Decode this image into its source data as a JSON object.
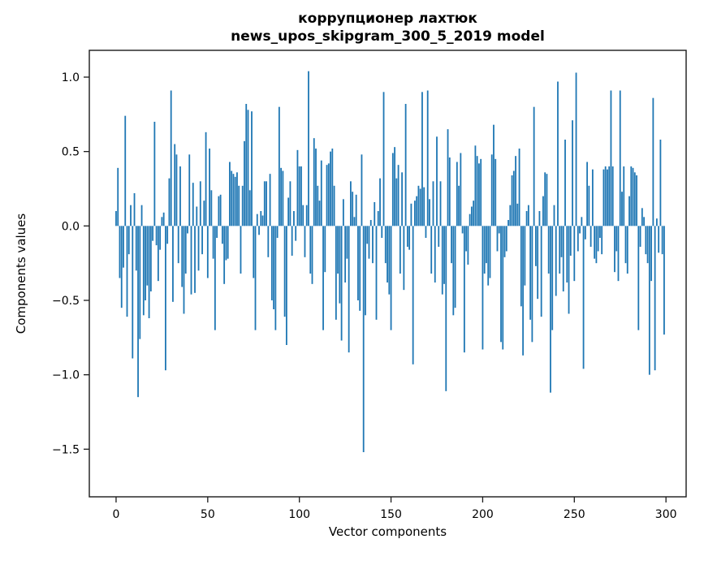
{
  "figure": {
    "background": "#ffffff",
    "text_color": "#000000",
    "spine_color": "#1a1a1a"
  },
  "chart_data": {
    "type": "bar",
    "title_line1": "коррупционер лахтюк",
    "title_line2": "news_upos_skipgram_300_5_2019 model",
    "xlabel": "Vector components",
    "ylabel": "Components values",
    "bar_color": "#1f77b4",
    "grid": false,
    "legend": null,
    "x_ticks": [
      0,
      50,
      100,
      150,
      200,
      250,
      300
    ],
    "x_tick_labels": [
      "0",
      "50",
      "100",
      "150",
      "200",
      "250",
      "300"
    ],
    "y_ticks": [
      1.0,
      0.5,
      0.0,
      -0.5,
      -1.0,
      -1.5
    ],
    "y_tick_labels": [
      "1.0",
      "0.5",
      "0.0",
      "−0.5",
      "−1.0",
      "−1.5"
    ],
    "xlim": [
      -14.6,
      311.0
    ],
    "ylim": [
      -1.82,
      1.18
    ],
    "x_is_component_index": true,
    "n_components": 300,
    "values": [
      0.1,
      0.39,
      -0.35,
      -0.55,
      -0.28,
      0.74,
      -0.61,
      -0.19,
      0.14,
      -0.89,
      0.22,
      -0.3,
      -1.15,
      -0.76,
      0.14,
      -0.6,
      -0.5,
      -0.4,
      -0.62,
      -0.44,
      -0.1,
      0.7,
      -0.13,
      -0.37,
      -0.16,
      0.06,
      0.09,
      -0.97,
      -0.12,
      0.32,
      0.91,
      -0.51,
      0.55,
      0.48,
      -0.25,
      0.4,
      -0.41,
      -0.59,
      -0.32,
      -0.05,
      0.48,
      -0.46,
      0.29,
      -0.45,
      0.13,
      -0.3,
      0.3,
      -0.19,
      0.17,
      0.63,
      -0.35,
      0.52,
      0.24,
      -0.22,
      -0.7,
      -0.08,
      0.2,
      0.21,
      -0.12,
      -0.39,
      -0.23,
      -0.22,
      0.43,
      0.37,
      0.35,
      0.33,
      0.36,
      0.27,
      -0.32,
      0.27,
      0.57,
      0.82,
      0.78,
      0.24,
      0.77,
      -0.35,
      -0.7,
      0.08,
      -0.06,
      0.1,
      0.07,
      0.3,
      0.3,
      -0.21,
      0.35,
      -0.5,
      -0.56,
      -0.7,
      -0.08,
      0.8,
      0.39,
      0.37,
      -0.61,
      -0.8,
      0.19,
      0.3,
      -0.2,
      0.1,
      -0.1,
      0.51,
      0.4,
      0.4,
      0.14,
      -0.21,
      0.14,
      1.04,
      -0.32,
      -0.39,
      0.59,
      0.52,
      0.27,
      0.17,
      0.44,
      -0.7,
      -0.31,
      0.41,
      0.42,
      0.5,
      0.52,
      0.27,
      -0.63,
      -0.32,
      -0.52,
      -0.77,
      0.18,
      -0.38,
      -0.22,
      -0.85,
      0.3,
      0.23,
      0.06,
      0.21,
      -0.5,
      -0.57,
      0.48,
      -1.52,
      -0.6,
      -0.12,
      -0.22,
      0.04,
      -0.25,
      0.16,
      -0.63,
      0.1,
      0.32,
      -0.08,
      0.9,
      -0.25,
      -0.38,
      -0.46,
      -0.7,
      0.49,
      0.53,
      0.32,
      0.41,
      -0.32,
      0.36,
      -0.43,
      0.82,
      -0.14,
      -0.16,
      0.15,
      -0.93,
      0.17,
      0.2,
      0.27,
      0.25,
      0.9,
      0.26,
      -0.08,
      0.91,
      0.18,
      -0.32,
      0.3,
      -0.38,
      0.6,
      -0.14,
      0.3,
      -0.46,
      -0.39,
      -1.11,
      0.65,
      0.46,
      -0.25,
      -0.6,
      -0.55,
      0.43,
      0.27,
      0.49,
      -0.05,
      -0.85,
      -0.17,
      -0.26,
      0.08,
      0.13,
      0.17,
      0.54,
      0.47,
      0.42,
      0.45,
      -0.83,
      -0.32,
      -0.25,
      -0.4,
      -0.35,
      0.48,
      0.68,
      0.45,
      -0.17,
      -0.05,
      -0.78,
      -0.83,
      -0.21,
      -0.17,
      0.04,
      0.14,
      0.34,
      0.37,
      0.47,
      0.15,
      0.52,
      -0.54,
      -0.87,
      -0.4,
      0.1,
      0.14,
      -0.63,
      -0.78,
      0.8,
      -0.27,
      -0.49,
      0.1,
      -0.61,
      0.2,
      0.36,
      0.35,
      -0.32,
      -1.12,
      -0.7,
      0.14,
      -0.47,
      0.97,
      -0.32,
      -0.21,
      -0.44,
      0.58,
      -0.38,
      -0.59,
      -0.2,
      0.71,
      -0.37,
      1.03,
      -0.17,
      -0.05,
      0.06,
      -0.96,
      -0.09,
      0.43,
      0.27,
      -0.14,
      0.38,
      -0.22,
      -0.25,
      -0.17,
      -0.08,
      -0.19,
      0.38,
      0.4,
      0.38,
      0.4,
      0.91,
      0.4,
      -0.31,
      -0.17,
      -0.37,
      0.91,
      0.23,
      0.4,
      -0.25,
      -0.32,
      0.2,
      0.4,
      0.39,
      0.36,
      0.34,
      -0.7,
      -0.14,
      0.12,
      0.06,
      -0.19,
      -0.25,
      -1.0,
      -0.37,
      0.86,
      -0.97,
      0.05,
      -0.18,
      0.58,
      -0.19,
      -0.73
    ]
  }
}
